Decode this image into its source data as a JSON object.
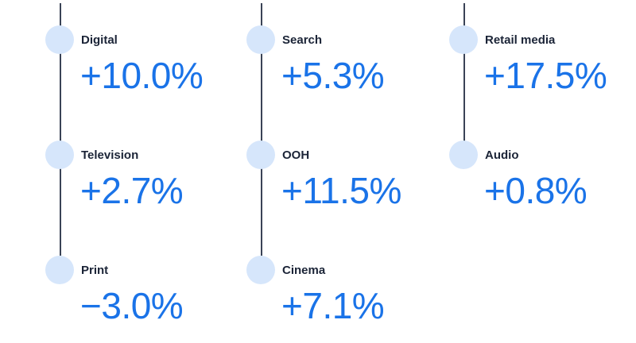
{
  "colors": {
    "value": "#1a73e8",
    "label": "#1b2437",
    "marker": "#d6e6fb",
    "line": "#3a4356"
  },
  "columns": [
    {
      "items": [
        {
          "label": "Digital",
          "value": "+10.0%"
        },
        {
          "label": "Television",
          "value": "+2.7%"
        },
        {
          "label": "Print",
          "value": "−3.0%"
        }
      ]
    },
    {
      "items": [
        {
          "label": "Search",
          "value": "+5.3%"
        },
        {
          "label": "OOH",
          "value": "+11.5%"
        },
        {
          "label": "Cinema",
          "value": "+7.1%"
        }
      ]
    },
    {
      "items": [
        {
          "label": "Retail media",
          "value": "+17.5%"
        },
        {
          "label": "Audio",
          "value": "+0.8%"
        }
      ]
    }
  ]
}
